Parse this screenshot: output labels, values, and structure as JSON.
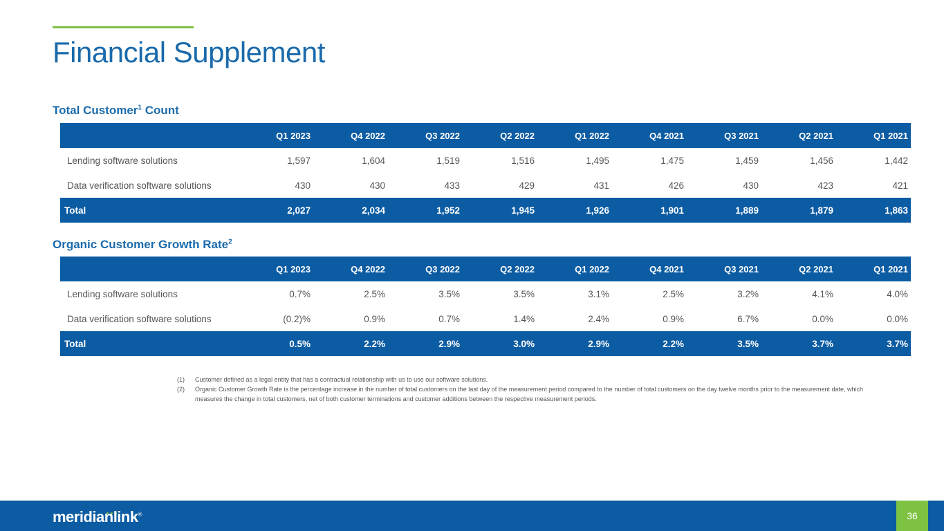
{
  "header": {
    "title": "Financial Supplement"
  },
  "columns": [
    "Q1 2023",
    "Q4 2022",
    "Q3 2022",
    "Q2 2022",
    "Q1 2022",
    "Q4 2021",
    "Q3 2021",
    "Q2 2021",
    "Q1 2021"
  ],
  "customer_count": {
    "title": "Total Customer",
    "title_sup": "1",
    "title_suffix": " Count",
    "rows": [
      {
        "label": "Lending software solutions",
        "values": [
          "1,597",
          "1,604",
          "1,519",
          "1,516",
          "1,495",
          "1,475",
          "1,459",
          "1,456",
          "1,442"
        ]
      },
      {
        "label": "Data verification software solutions",
        "values": [
          "430",
          "430",
          "433",
          "429",
          "431",
          "426",
          "430",
          "423",
          "421"
        ]
      }
    ],
    "total": {
      "label": "Total",
      "values": [
        "2,027",
        "2,034",
        "1,952",
        "1,945",
        "1,926",
        "1,901",
        "1,889",
        "1,879",
        "1,863"
      ]
    }
  },
  "growth_rate": {
    "title": "Organic Customer Growth Rate",
    "title_sup": "2",
    "rows": [
      {
        "label": "Lending software solutions",
        "values": [
          "0.7%",
          "2.5%",
          "3.5%",
          "3.5%",
          "3.1%",
          "2.5%",
          "3.2%",
          "4.1%",
          "4.0%"
        ]
      },
      {
        "label": "Data verification software solutions",
        "values": [
          "(0.2)%",
          "0.9%",
          "0.7%",
          "1.4%",
          "2.4%",
          "0.9%",
          "6.7%",
          "0.0%",
          "0.0%"
        ]
      }
    ],
    "total": {
      "label": "Total",
      "values": [
        "0.5%",
        "2.2%",
        "2.9%",
        "3.0%",
        "2.9%",
        "2.2%",
        "3.5%",
        "3.7%",
        "3.7%"
      ]
    }
  },
  "footnotes": [
    {
      "num": "(1)",
      "text": "Customer defined as a legal entity that has a contractual relationship with us to use our software solutions."
    },
    {
      "num": "(2)",
      "text": "Organic Customer Growth Rate is the percentage increase in the number of total customers on the last day of the measurement period compared to the number of total customers on the day twelve months prior to the measurement date, which measures the change in total customers, net of both customer terminations and customer additions between the respective measurement periods."
    }
  ],
  "footer": {
    "logo_text": "meridianlink",
    "logo_mark": "®",
    "page_number": "36"
  }
}
